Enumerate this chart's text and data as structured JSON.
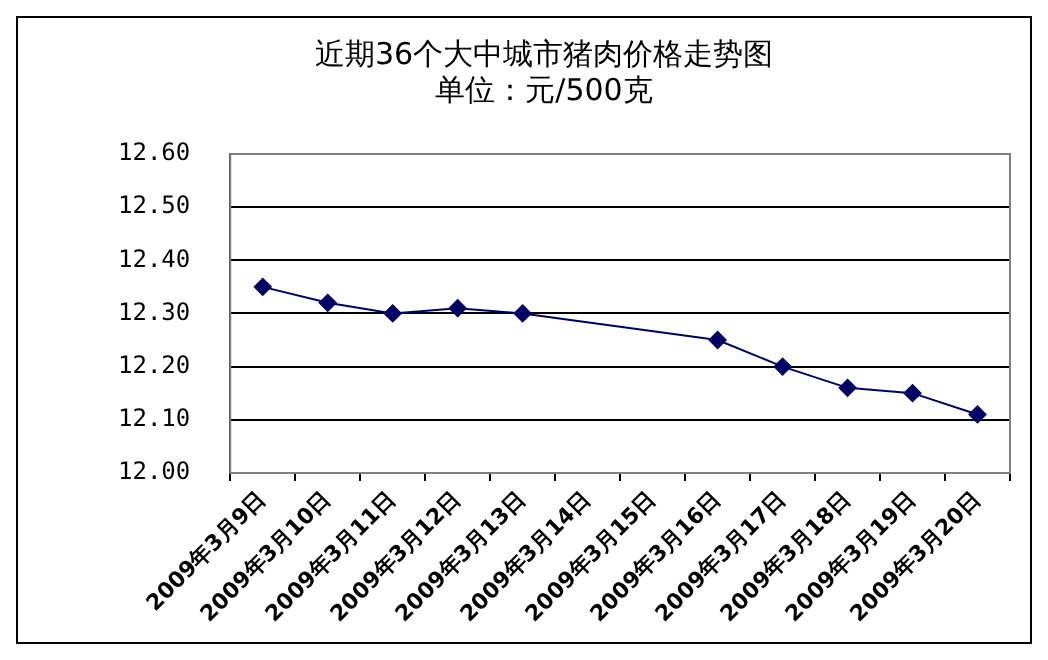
{
  "chart_data": {
    "type": "line",
    "title": "近期36个大中城市猪肉价格走势图",
    "subtitle": "单位：元/500克",
    "categories": [
      "2009年3月9日",
      "2009年3月10日",
      "2009年3月11日",
      "2009年3月12日",
      "2009年3月13日",
      "2009年3月14日",
      "2009年3月15日",
      "2009年3月16日",
      "2009年3月17日",
      "2009年3月18日",
      "2009年3月19日",
      "2009年3月20日"
    ],
    "series": [
      {
        "color": "#000066",
        "values": [
          12.35,
          12.32,
          12.3,
          12.31,
          12.3,
          null,
          null,
          12.25,
          12.2,
          12.16,
          12.15,
          12.11
        ]
      }
    ],
    "ylim": [
      12.0,
      12.6
    ],
    "yticks": [
      {
        "value": 12.0,
        "label": "12.00"
      },
      {
        "value": 12.1,
        "label": "12.10"
      },
      {
        "value": 12.2,
        "label": "12.20"
      },
      {
        "value": 12.3,
        "label": "12.30"
      },
      {
        "value": 12.4,
        "label": "12.40"
      },
      {
        "value": 12.5,
        "label": "12.50"
      },
      {
        "value": 12.6,
        "label": "12.60"
      }
    ],
    "grid": "y",
    "legend": false,
    "marker": "diamond",
    "line_style": "solid"
  }
}
